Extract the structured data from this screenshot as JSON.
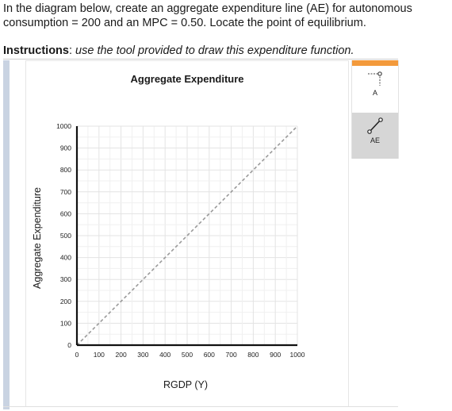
{
  "question": {
    "text": "In the diagram below, create an aggregate expenditure line (AE) for autonomous consumption = 200 and an MPC = 0.50. Locate the point of equilibrium."
  },
  "instructions": {
    "label": "Instructions",
    "text": "use the tool provided to draw this expenditure function."
  },
  "toolbox": {
    "tools": [
      {
        "label": "A",
        "icon": "point-marker-icon"
      },
      {
        "label": "AE",
        "icon": "line-draw-icon"
      }
    ],
    "accent_color": "#f39a3c",
    "selected_tool_bg": "#d6d6d6"
  },
  "chart_data": {
    "type": "line",
    "title": "Aggregate Expenditure",
    "xlabel": "RGDP (Y)",
    "ylabel": "Aggregate Expenditure",
    "xlim": [
      0,
      1000
    ],
    "ylim": [
      0,
      1000
    ],
    "x_ticks": [
      "0",
      "100",
      "200",
      "300",
      "400",
      "500",
      "600",
      "700",
      "800",
      "900",
      "1000"
    ],
    "y_ticks": [
      "0",
      "100",
      "200",
      "300",
      "400",
      "500",
      "600",
      "700",
      "800",
      "900",
      "1000"
    ],
    "grid": true,
    "series": [
      {
        "style": "dashed",
        "color": "#9a9a9a",
        "x": [
          0,
          1000
        ],
        "y": [
          0,
          1000
        ]
      }
    ]
  }
}
